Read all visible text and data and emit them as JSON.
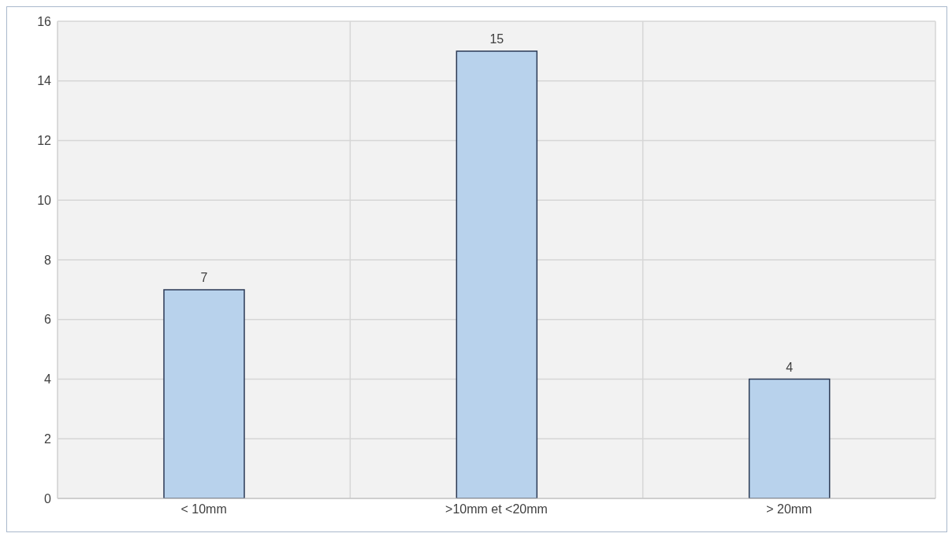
{
  "chart_data": {
    "type": "bar",
    "categories": [
      "< 10mm",
      ">10mm et <20mm",
      "> 20mm"
    ],
    "values": [
      7,
      15,
      4
    ],
    "color": "#b8d2ec",
    "ylim": [
      0,
      16
    ],
    "yticks": [
      0,
      2,
      4,
      6,
      8,
      10,
      12,
      14,
      16
    ],
    "grid": true,
    "data_labels": true
  }
}
